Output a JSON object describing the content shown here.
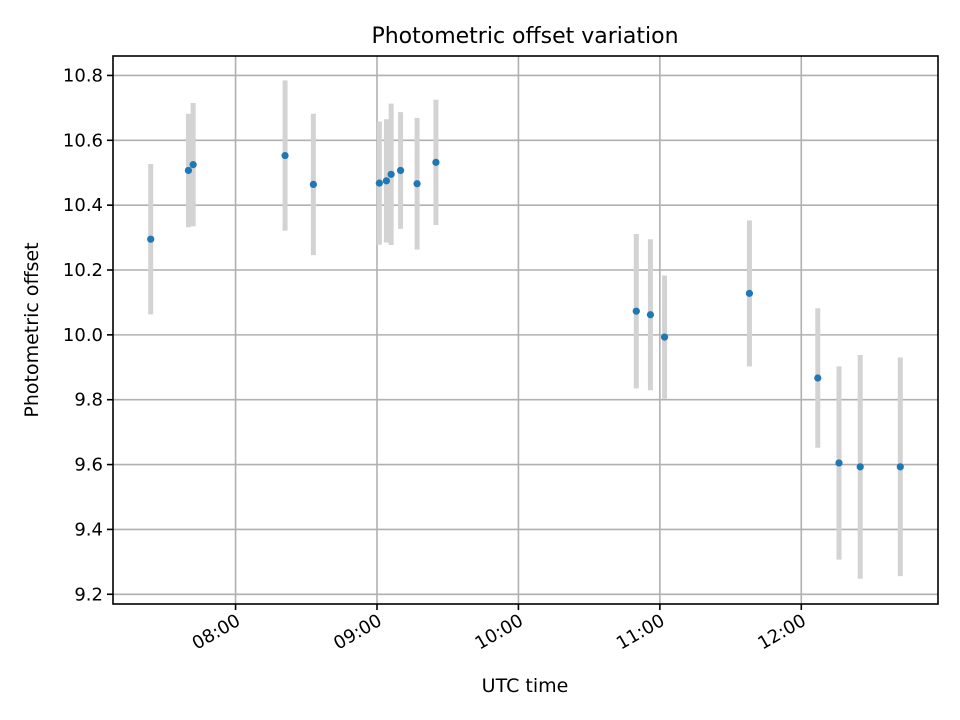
{
  "chart_data": {
    "type": "scatter",
    "title": "Photometric offset variation",
    "xlabel": "UTC time",
    "ylabel": "Photometric offset",
    "x_tick_labels": [
      "08:00",
      "09:00",
      "10:00",
      "11:00",
      "12:00"
    ],
    "y_tick_labels": [
      "9.2",
      "9.4",
      "9.6",
      "9.8",
      "10.0",
      "10.2",
      "10.4",
      "10.6",
      "10.8"
    ],
    "xlim": [
      "07:08",
      "12:58"
    ],
    "ylim": [
      9.17,
      10.86
    ],
    "grid": true,
    "colors": {
      "point": "#1f77b4",
      "errorbar": "#d3d3d3"
    },
    "points": [
      {
        "x": "07:24",
        "y": 10.295,
        "err": 0.232
      },
      {
        "x": "07:40",
        "y": 10.507,
        "err": 0.175
      },
      {
        "x": "07:42",
        "y": 10.525,
        "err": 0.19
      },
      {
        "x": "08:21",
        "y": 10.553,
        "err": 0.232
      },
      {
        "x": "08:33",
        "y": 10.464,
        "err": 0.218
      },
      {
        "x": "09:01",
        "y": 10.468,
        "err": 0.19
      },
      {
        "x": "09:04",
        "y": 10.475,
        "err": 0.19
      },
      {
        "x": "09:06",
        "y": 10.495,
        "err": 0.218
      },
      {
        "x": "09:10",
        "y": 10.507,
        "err": 0.18
      },
      {
        "x": "09:17",
        "y": 10.466,
        "err": 0.203
      },
      {
        "x": "09:25",
        "y": 10.532,
        "err": 0.193
      },
      {
        "x": "10:50",
        "y": 10.073,
        "err": 0.238
      },
      {
        "x": "10:56",
        "y": 10.062,
        "err": 0.233
      },
      {
        "x": "11:02",
        "y": 9.993,
        "err": 0.19
      },
      {
        "x": "11:38",
        "y": 10.128,
        "err": 0.225
      },
      {
        "x": "12:07",
        "y": 9.867,
        "err": 0.215
      },
      {
        "x": "12:16",
        "y": 9.605,
        "err": 0.298
      },
      {
        "x": "12:25",
        "y": 9.593,
        "err": 0.345
      },
      {
        "x": "12:42",
        "y": 9.593,
        "err": 0.337
      }
    ]
  }
}
